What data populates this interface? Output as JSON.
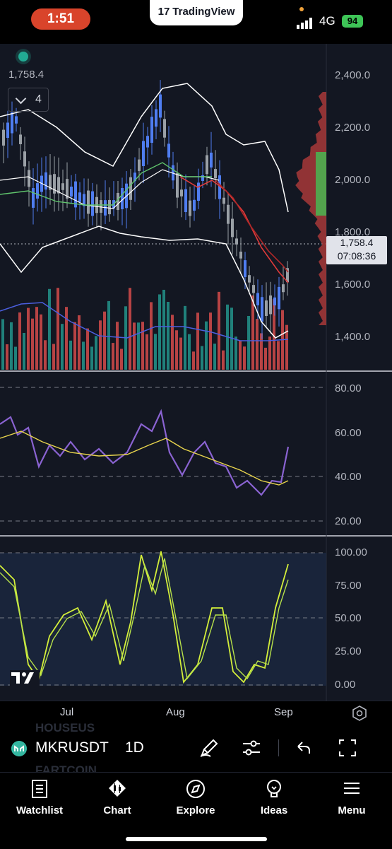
{
  "status_bar": {
    "time": "1:51",
    "app_name": "TradingView",
    "network": "4G",
    "battery": "94"
  },
  "chart": {
    "last_price": "1,758.4",
    "indicator_count": "4",
    "price_tag": {
      "price": "1,758.4",
      "countdown": "07:08:36"
    },
    "price_axis": [
      "2,400.0",
      "2,200.0",
      "2,000.0",
      "1,800.0",
      "1,600.0",
      "1,400.0"
    ],
    "rsi_axis": [
      "80.00",
      "60.00",
      "40.00",
      "20.00"
    ],
    "stoch_axis": [
      "100.00",
      "75.00",
      "50.00",
      "25.00",
      "0.00"
    ],
    "time_axis": [
      "Jul",
      "Aug",
      "Sep"
    ],
    "colors": {
      "background": "#131722",
      "up": "#4f7df0",
      "down": "#9aa0a6",
      "rsi": "#8a63d2",
      "rsi_ma": "#e8d44d",
      "stoch_k": "#d4ef3a",
      "stoch_d": "#b6e04a",
      "ema_red": "#e03a3a",
      "ma_green": "#5fc36c",
      "bollinger": "#ffffff",
      "volume_up": "#26a69a",
      "volume_down": "#ef5350"
    }
  },
  "symbol_bar": {
    "symbol": "MKRUSDT",
    "interval": "1D",
    "background_tickers": [
      "HOUSEUS",
      "FARTCOIN"
    ],
    "tools": [
      "brush-icon",
      "indicator-settings-icon",
      "undo-icon",
      "fullscreen-icon"
    ]
  },
  "nav": {
    "watchlist": "Watchlist",
    "chart": "Chart",
    "explore": "Explore",
    "ideas": "Ideas",
    "menu": "Menu"
  }
}
